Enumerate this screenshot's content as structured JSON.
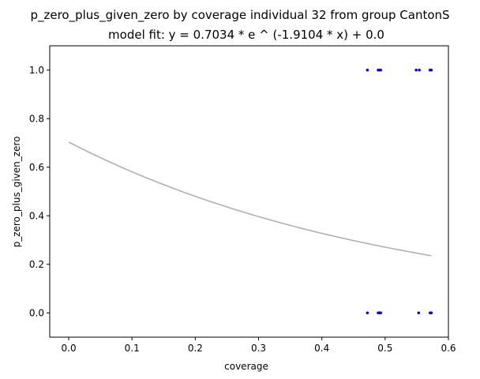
{
  "chart_data": {
    "type": "scatter",
    "title": "p_zero_plus_given_zero by coverage individual 32 from group CantonS",
    "subtitle": "model fit: y = 0.7034 * e ^ (-1.9104 * x) + 0.0",
    "xlabel": "coverage",
    "ylabel": "p_zero_plus_given_zero",
    "xlim": [
      -0.03,
      0.6
    ],
    "ylim": [
      -0.1,
      1.1
    ],
    "xticks": [
      0.0,
      0.1,
      0.2,
      0.3,
      0.4,
      0.5,
      0.6
    ],
    "xtick_labels": [
      "0.0",
      "0.1",
      "0.2",
      "0.3",
      "0.4",
      "0.5",
      "0.6"
    ],
    "yticks": [
      0.0,
      0.2,
      0.4,
      0.6,
      0.8,
      1.0
    ],
    "ytick_labels": [
      "0.0",
      "0.2",
      "0.4",
      "0.6",
      "0.8",
      "1.0"
    ],
    "grid": false,
    "colors": {
      "points": "#0000ff",
      "fit": "#b0b0b0"
    },
    "points": [
      {
        "x": 0.472,
        "y": 1.0
      },
      {
        "x": 0.489,
        "y": 1.0
      },
      {
        "x": 0.491,
        "y": 1.0
      },
      {
        "x": 0.493,
        "y": 1.0
      },
      {
        "x": 0.549,
        "y": 1.0
      },
      {
        "x": 0.554,
        "y": 1.0
      },
      {
        "x": 0.571,
        "y": 1.0
      },
      {
        "x": 0.573,
        "y": 1.0
      },
      {
        "x": 0.472,
        "y": 0.0
      },
      {
        "x": 0.489,
        "y": 0.0
      },
      {
        "x": 0.491,
        "y": 0.0
      },
      {
        "x": 0.493,
        "y": 0.0
      },
      {
        "x": 0.553,
        "y": 0.0
      },
      {
        "x": 0.571,
        "y": 0.0
      },
      {
        "x": 0.573,
        "y": 0.0
      }
    ],
    "fit": {
      "a": 0.7034,
      "b": -1.9104,
      "c": 0.0,
      "x_range": [
        0.0,
        0.573
      ]
    }
  }
}
